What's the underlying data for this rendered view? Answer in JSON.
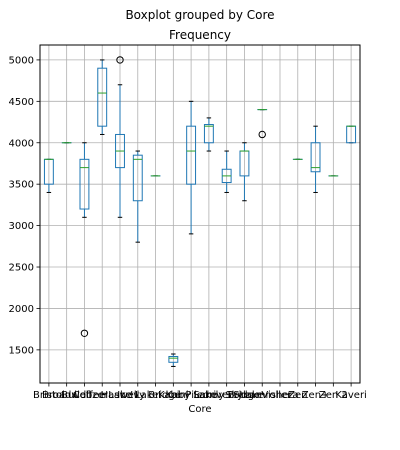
{
  "chart_data": {
    "type": "boxplot",
    "suptitle": "Boxplot grouped by Core",
    "title": "Frequency",
    "xlabel": "Core",
    "ylabel": "",
    "ylim": [
      1100,
      5180
    ],
    "yticks": [
      1500,
      2000,
      2500,
      3000,
      3500,
      4000,
      4500,
      5000
    ],
    "grid": true,
    "colors": {
      "box": "#1f77b4",
      "median": "#2ca02c",
      "whisker": "#000000",
      "grid": "#b0b0b0",
      "flier": "#000000"
    },
    "categories": [
      "Bristol",
      "Broadwell",
      "Bulldozer",
      "Coffee Lake",
      "Haswell",
      "Ice Lake",
      "Ivy Bridge",
      "Kabini",
      "Kaby Lake",
      "Piledriver",
      "Sandy Bridge",
      "Skylake",
      "Steamroller",
      "Vishera",
      "Zen",
      "Zen+",
      "Zen 2",
      "Kaveri"
    ],
    "boxes": [
      {
        "min": 3400,
        "q1": 3500,
        "median": 3800,
        "q3": 3800,
        "max": 3800,
        "fliers": []
      },
      {
        "min": 4000,
        "q1": 4000,
        "median": 4000,
        "q3": 4000,
        "max": 4000,
        "fliers": []
      },
      {
        "min": 3100,
        "q1": 3200,
        "median": 3700,
        "q3": 3800,
        "max": 4000,
        "fliers": [
          1700
        ]
      },
      {
        "min": 4100,
        "q1": 4200,
        "median": 4600,
        "q3": 4900,
        "max": 5000,
        "fliers": []
      },
      {
        "min": 3100,
        "q1": 3700,
        "median": 3900,
        "q3": 4100,
        "max": 4700,
        "fliers": [
          5000
        ]
      },
      {
        "min": 2800,
        "q1": 3300,
        "median": 3800,
        "q3": 3850,
        "max": 3900,
        "fliers": []
      },
      {
        "min": 3600,
        "q1": 3600,
        "median": 3600,
        "q3": 3600,
        "max": 3600,
        "fliers": []
      },
      {
        "min": 1300,
        "q1": 1350,
        "median": 1400,
        "q3": 1420,
        "max": 1450,
        "fliers": []
      },
      {
        "min": 2900,
        "q1": 3500,
        "median": 3900,
        "q3": 4200,
        "max": 4500,
        "fliers": []
      },
      {
        "min": 3900,
        "q1": 4000,
        "median": 4200,
        "q3": 4220,
        "max": 4300,
        "fliers": []
      },
      {
        "min": 3400,
        "q1": 3520,
        "median": 3600,
        "q3": 3680,
        "max": 3900,
        "fliers": []
      },
      {
        "min": 3300,
        "q1": 3600,
        "median": 3900,
        "q3": 3900,
        "max": 4000,
        "fliers": []
      },
      {
        "min": 4400,
        "q1": 4400,
        "median": 4400,
        "q3": 4400,
        "max": 4400,
        "fliers": [
          4100
        ]
      },
      null,
      {
        "min": 3800,
        "q1": 3800,
        "median": 3800,
        "q3": 3800,
        "max": 3800,
        "fliers": []
      },
      {
        "min": 3400,
        "q1": 3650,
        "median": 3700,
        "q3": 4000,
        "max": 4200,
        "fliers": []
      },
      {
        "min": 3600,
        "q1": 3600,
        "median": 3600,
        "q3": 3600,
        "max": 3600,
        "fliers": []
      },
      {
        "min": 4000,
        "q1": 4000,
        "median": 4200,
        "q3": 4200,
        "max": 4200,
        "fliers": []
      }
    ]
  }
}
